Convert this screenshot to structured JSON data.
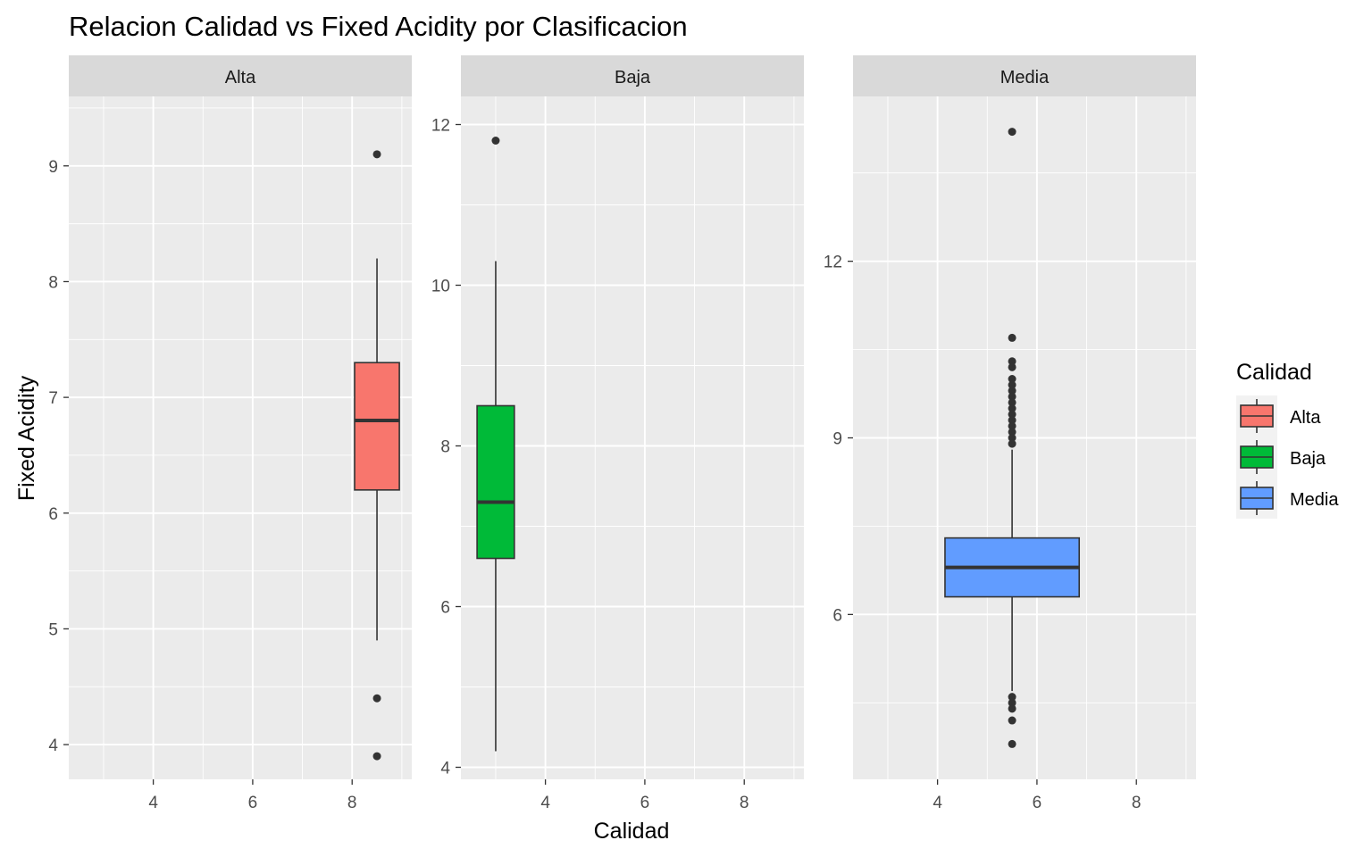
{
  "chart_data": {
    "type": "boxplot",
    "title": "Relacion Calidad vs Fixed Acidity por Clasificacion",
    "xlabel": "Calidad",
    "ylabel": "Fixed Acidity",
    "grid": true,
    "legend": {
      "title": "Calidad",
      "position": "right",
      "entries": [
        {
          "label": "Alta",
          "color": "#F8766D"
        },
        {
          "label": "Baja",
          "color": "#00BA38"
        },
        {
          "label": "Media",
          "color": "#619CFF"
        }
      ]
    },
    "xlim": [
      2.3,
      9.2
    ],
    "x_ticks": [
      4,
      6,
      8
    ],
    "panels": [
      {
        "label": "Alta",
        "color": "#F8766D",
        "ylim": [
          3.7,
          9.6
        ],
        "y_ticks": [
          4,
          5,
          6,
          7,
          8,
          9
        ],
        "box": {
          "x": 8.5,
          "width": 0.9,
          "whisker_low": 4.9,
          "q1": 6.2,
          "median": 6.8,
          "q3": 7.3,
          "whisker_high": 8.2
        },
        "outliers": [
          9.1,
          4.4,
          3.9
        ]
      },
      {
        "label": "Baja",
        "color": "#00BA38",
        "ylim": [
          3.85,
          12.35
        ],
        "y_ticks": [
          4,
          6,
          8,
          10,
          12
        ],
        "box": {
          "x": 3.0,
          "width": 0.75,
          "whisker_low": 4.2,
          "q1": 6.6,
          "median": 7.3,
          "q3": 8.5,
          "whisker_high": 10.3
        },
        "outliers": [
          11.8
        ]
      },
      {
        "label": "Media",
        "color": "#619CFF",
        "ylim": [
          3.2,
          14.8
        ],
        "y_ticks": [
          6,
          9,
          12
        ],
        "box": {
          "x": 5.5,
          "width": 2.7,
          "whisker_low": 4.7,
          "q1": 6.3,
          "median": 6.8,
          "q3": 7.3,
          "whisker_high": 8.8
        },
        "outliers": [
          14.2,
          10.7,
          10.3,
          10.2,
          10.0,
          9.9,
          9.8,
          9.7,
          9.6,
          9.5,
          9.4,
          9.3,
          9.2,
          9.1,
          9.0,
          8.9,
          4.6,
          4.5,
          4.4,
          4.2,
          3.8
        ]
      }
    ]
  }
}
